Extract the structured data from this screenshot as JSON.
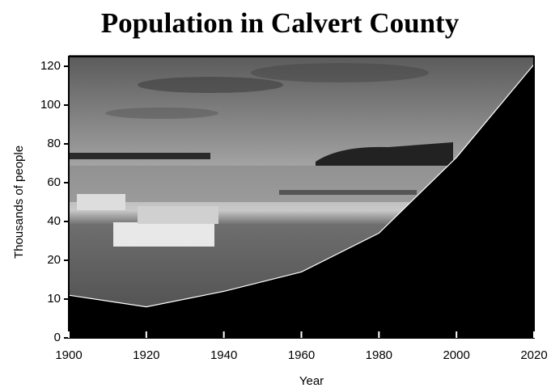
{
  "chart_data": {
    "type": "area",
    "title": "Population in Calvert County",
    "x_label": "Year",
    "y_label": "Thousands of people",
    "x": [
      1900,
      1920,
      1940,
      1960,
      1980,
      2000,
      2020
    ],
    "values": [
      11,
      8,
      12,
      17,
      34,
      73,
      121
    ],
    "color": "#000000",
    "xlim": [
      1900,
      2020
    ],
    "xticks": [
      1900,
      1920,
      1940,
      1960,
      1980,
      2000,
      2020
    ],
    "ylim": [
      0,
      125
    ],
    "yticks": [
      0,
      10,
      20,
      40,
      60,
      80,
      100,
      120
    ]
  }
}
